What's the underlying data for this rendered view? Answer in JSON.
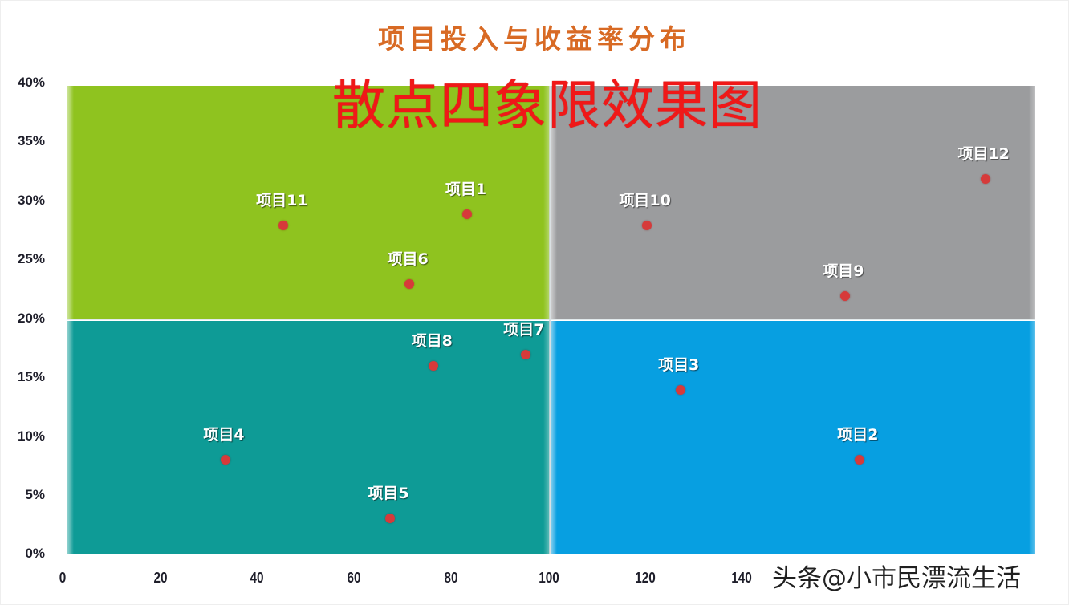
{
  "header": {
    "title": "项目投入与收益率分布",
    "overlay_title": "散点四象限效果图"
  },
  "colors": {
    "title": "#d86a24",
    "overlay_title": "#f01818",
    "quadrant_top_left": "#8fc31f",
    "quadrant_top_right": "#9b9c9e",
    "quadrant_bottom_left": "#0e9b96",
    "quadrant_bottom_right": "#079fe1",
    "point": "#d63a3a",
    "label": "#ffffff"
  },
  "y_axis": {
    "ticks": [
      "40%",
      "35%",
      "30%",
      "25%",
      "20%",
      "15%",
      "10%",
      "5%",
      "0%"
    ]
  },
  "x_axis": {
    "ticks": [
      "0",
      "20",
      "40",
      "60",
      "80",
      "100",
      "120",
      "140"
    ]
  },
  "watermark": "头条@小市民漂流生活",
  "chart_data": {
    "type": "scatter",
    "title": "项目投入与收益率分布",
    "subtitle": "散点四象限效果图",
    "xlabel": "",
    "ylabel": "",
    "xlim": [
      0,
      200
    ],
    "ylim": [
      0,
      0.4
    ],
    "x_ticks": [
      0,
      20,
      40,
      60,
      80,
      100,
      120,
      140
    ],
    "y_ticks": [
      "0%",
      "5%",
      "10%",
      "15%",
      "20%",
      "25%",
      "30%",
      "35%",
      "40%"
    ],
    "grid": false,
    "legend": "none",
    "quadrant_split": {
      "x": 100,
      "y": 0.2
    },
    "quadrants": [
      {
        "position": "top-left",
        "color": "#8fc31f"
      },
      {
        "position": "top-right",
        "color": "#9b9c9e"
      },
      {
        "position": "bottom-left",
        "color": "#0e9b96"
      },
      {
        "position": "bottom-right",
        "color": "#079fe1"
      }
    ],
    "points": [
      {
        "label": "项目1",
        "x": 83,
        "y": 0.29
      },
      {
        "label": "项目2",
        "x": 164,
        "y": 0.08
      },
      {
        "label": "项目3",
        "x": 127,
        "y": 0.14
      },
      {
        "label": "项目4",
        "x": 33,
        "y": 0.08
      },
      {
        "label": "项目5",
        "x": 67,
        "y": 0.03
      },
      {
        "label": "项目6",
        "x": 71,
        "y": 0.23
      },
      {
        "label": "项目7",
        "x": 95,
        "y": 0.17
      },
      {
        "label": "项目8",
        "x": 76,
        "y": 0.16
      },
      {
        "label": "项目9",
        "x": 161,
        "y": 0.22
      },
      {
        "label": "项目10",
        "x": 120,
        "y": 0.28
      },
      {
        "label": "项目11",
        "x": 45,
        "y": 0.28
      },
      {
        "label": "项目12",
        "x": 190,
        "y": 0.32
      }
    ]
  }
}
